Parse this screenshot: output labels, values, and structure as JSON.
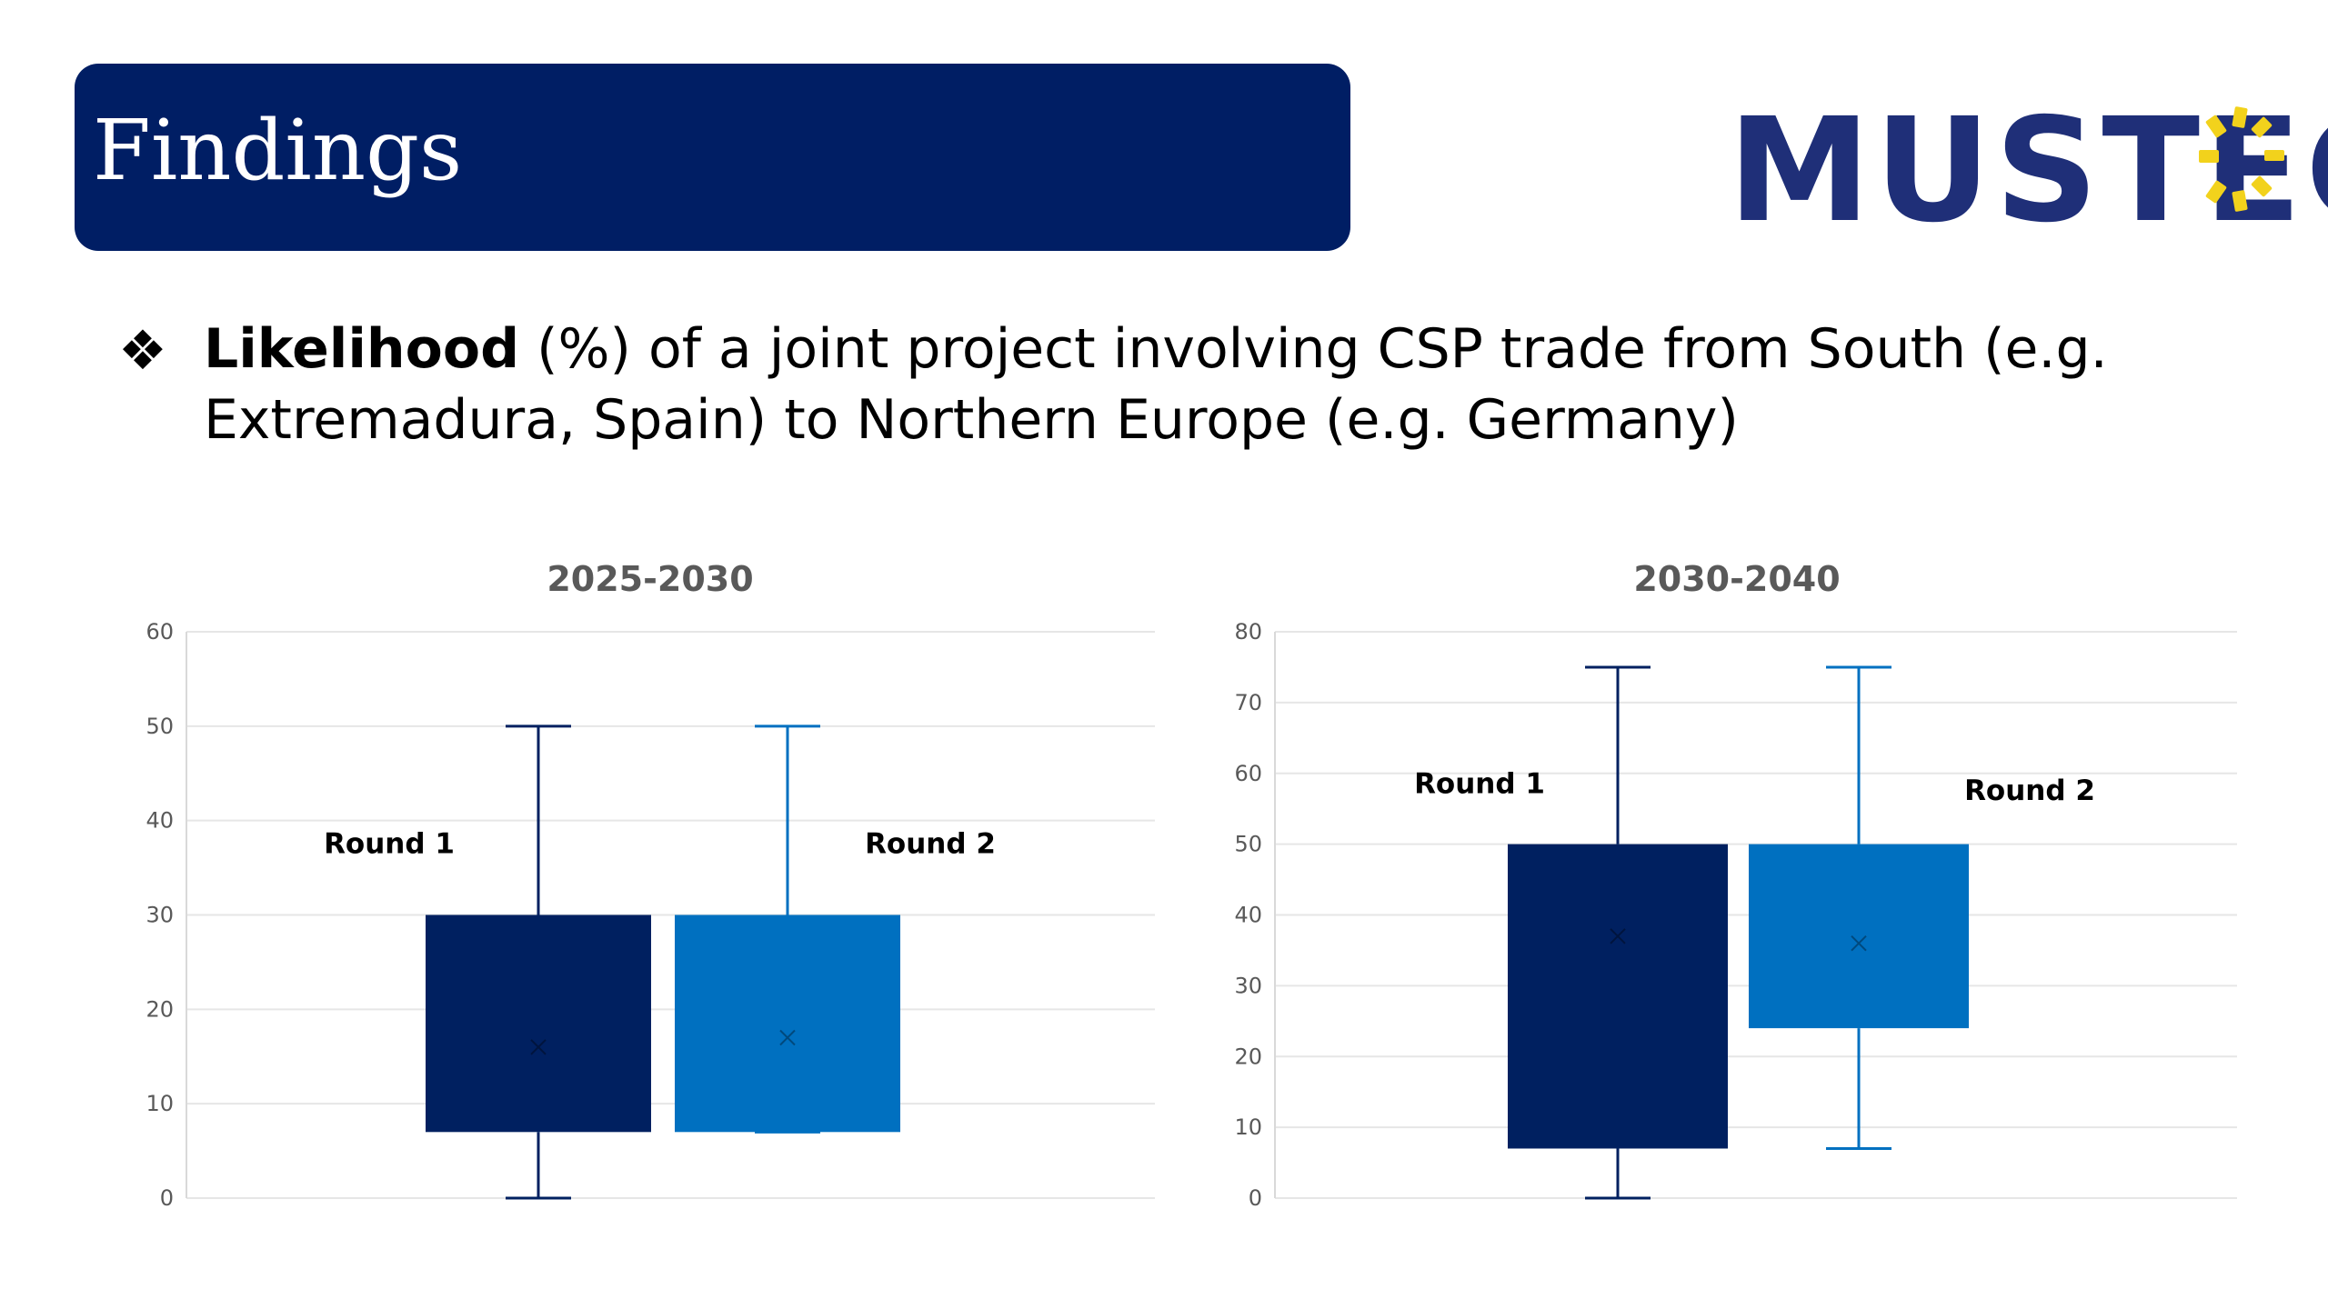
{
  "header": {
    "title": "Findings",
    "logo_text": "MUSTEC",
    "logo_icon": "sun-icon",
    "title_bg_color": "#001E64"
  },
  "bullet": {
    "icon": "four-diamond-bullet-icon",
    "glyph": "❖",
    "bold": "Likelihood",
    "line1_rest": " (%) of a joint project involving CSP trade from South (e.g.",
    "line2": "Extremadura, Spain) to Northern Europe (e.g. Germany)"
  },
  "chart_data": [
    {
      "type": "box",
      "title": "2025-2030",
      "xlabel": "",
      "ylabel": "",
      "ylim": [
        0,
        60
      ],
      "yticks": [
        0,
        10,
        20,
        30,
        40,
        50,
        60
      ],
      "grid": true,
      "series": [
        {
          "name": "Round 1",
          "min": 0,
          "q1": 7,
          "q3": 30,
          "max": 50,
          "mean": 16,
          "color": "#002060"
        },
        {
          "name": "Round 2",
          "min": 7,
          "q1": 7,
          "q3": 30,
          "max": 50,
          "mean": 17,
          "color": "#0070C0"
        }
      ]
    },
    {
      "type": "box",
      "title": "2030-2040",
      "xlabel": "",
      "ylabel": "",
      "ylim": [
        0,
        80
      ],
      "yticks": [
        0,
        10,
        20,
        30,
        40,
        50,
        60,
        70,
        80
      ],
      "grid": true,
      "series": [
        {
          "name": "Round 1",
          "min": 0,
          "q1": 7,
          "q3": 50,
          "max": 75,
          "mean": 37,
          "color": "#002060"
        },
        {
          "name": "Round 2",
          "min": 7,
          "q1": 24,
          "q3": 50,
          "max": 75,
          "mean": 36,
          "color": "#0070C0"
        }
      ]
    }
  ]
}
